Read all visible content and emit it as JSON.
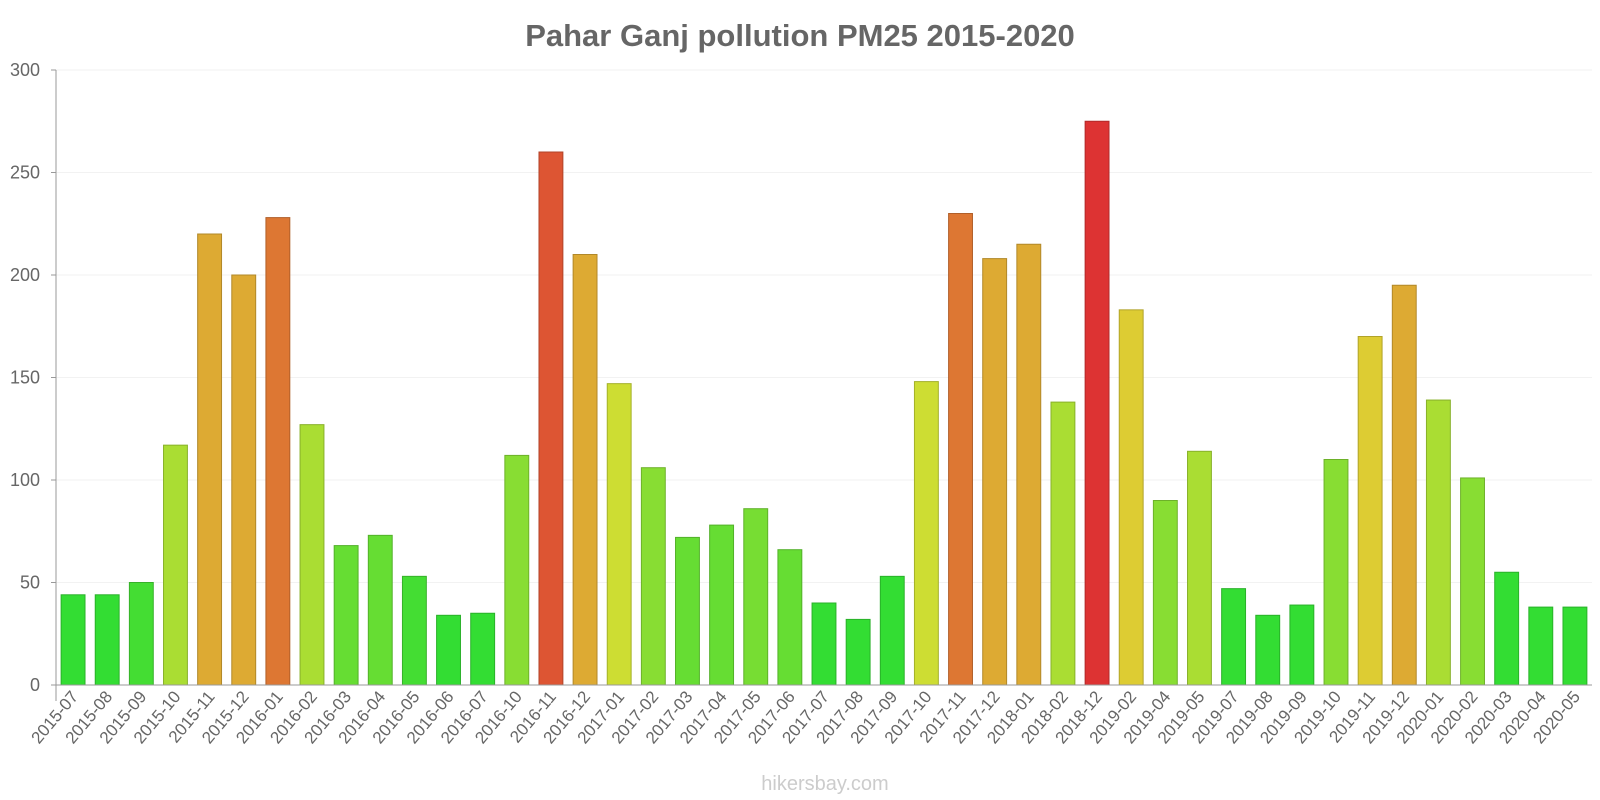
{
  "chart_data": {
    "type": "bar",
    "title": "Pahar Ganj pollution PM25 2015-2020",
    "xlabel": "",
    "ylabel": "",
    "ylim": [
      0,
      300
    ],
    "yticks": [
      0,
      50,
      100,
      150,
      200,
      250,
      300
    ],
    "grid": true,
    "categories": [
      "2015-07",
      "2015-08",
      "2015-09",
      "2015-10",
      "2015-11",
      "2015-12",
      "2016-01",
      "2016-02",
      "2016-03",
      "2016-04",
      "2016-05",
      "2016-06",
      "2016-07",
      "2016-10",
      "2016-11",
      "2016-12",
      "2017-01",
      "2017-02",
      "2017-03",
      "2017-04",
      "2017-05",
      "2017-06",
      "2017-07",
      "2017-08",
      "2017-09",
      "2017-10",
      "2017-11",
      "2017-12",
      "2018-01",
      "2018-02",
      "2018-12",
      "2019-02",
      "2019-04",
      "2019-05",
      "2019-07",
      "2019-08",
      "2019-09",
      "2019-10",
      "2019-11",
      "2019-12",
      "2020-01",
      "2020-02",
      "2020-03",
      "2020-04",
      "2020-05"
    ],
    "values": [
      44,
      44,
      50,
      117,
      220,
      200,
      228,
      127,
      68,
      73,
      53,
      34,
      35,
      112,
      260,
      210,
      147,
      106,
      72,
      78,
      86,
      66,
      40,
      32,
      53,
      148,
      230,
      208,
      215,
      138,
      275,
      183,
      90,
      114,
      47,
      34,
      39,
      110,
      170,
      195,
      139,
      101,
      55,
      38,
      38
    ],
    "colors": [
      "#33dd33",
      "#33dd33",
      "#44dd33",
      "#aadd33",
      "#ddaa33",
      "#ddaa33",
      "#dd7733",
      "#aadd33",
      "#66dd33",
      "#66dd33",
      "#44dd33",
      "#33dd33",
      "#33dd33",
      "#88dd33",
      "#dd5533",
      "#ddaa33",
      "#cddd33",
      "#88dd33",
      "#66dd33",
      "#66dd33",
      "#77dd33",
      "#66dd33",
      "#33dd33",
      "#33dd33",
      "#33dd33",
      "#cddd33",
      "#dd7733",
      "#ddaa33",
      "#ddaa33",
      "#aadd33",
      "#dd3333",
      "#ddcc33",
      "#88dd33",
      "#aadd33",
      "#33dd33",
      "#33dd33",
      "#33dd33",
      "#88dd33",
      "#ddcc33",
      "#ddaa33",
      "#aadd33",
      "#88dd33",
      "#33dd33",
      "#33dd33",
      "#33dd33"
    ]
  },
  "watermark": "hikersbay.com"
}
